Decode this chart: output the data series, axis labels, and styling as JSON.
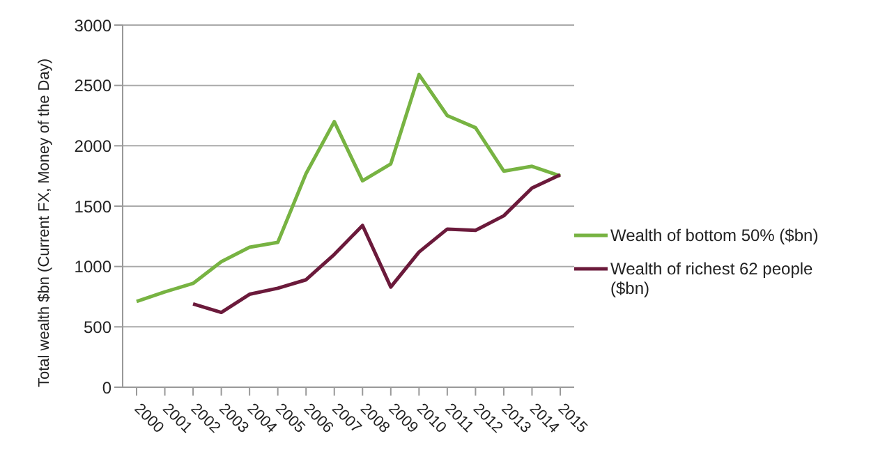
{
  "chart_data": {
    "type": "line",
    "ylabel": "Total wealth $bn (Current FX, Money of the Day)",
    "categories": [
      "2000",
      "2001",
      "2002",
      "2003",
      "2004",
      "2005",
      "2006",
      "2007",
      "2008",
      "2009",
      "2010",
      "2011",
      "2012",
      "2013",
      "2014",
      "2015"
    ],
    "series": [
      {
        "name": "Wealth of bottom 50% ($bn)",
        "color": "#77b342",
        "values": [
          710,
          790,
          860,
          1040,
          1160,
          1200,
          1770,
          2200,
          1710,
          1850,
          2590,
          2250,
          2150,
          1790,
          1830,
          1750
        ]
      },
      {
        "name": "Wealth of richest 62 people ($bn)",
        "color": "#6b1a3b",
        "values": [
          null,
          null,
          690,
          620,
          770,
          820,
          890,
          1100,
          1340,
          830,
          1120,
          1310,
          1300,
          1420,
          1650,
          1760
        ]
      }
    ],
    "ylim": [
      0,
      3000
    ],
    "yticks": [
      0,
      500,
      1000,
      1500,
      2000,
      2500,
      3000
    ],
    "grid": "y",
    "legend": "right",
    "marker": "none",
    "line_style": "solid"
  }
}
